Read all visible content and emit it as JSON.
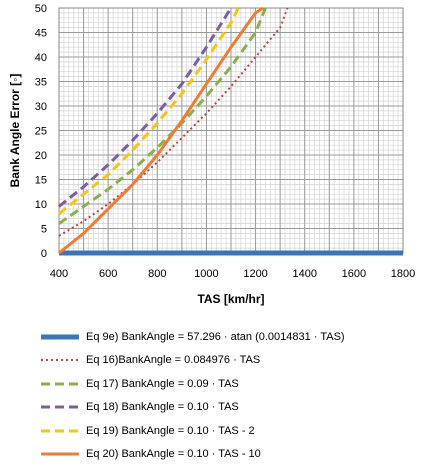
{
  "chart_data": {
    "type": "line",
    "title": "",
    "xlabel": "TAS [km/hr]",
    "ylabel": "Bank Angle Error [◦]",
    "xlim": [
      400,
      1800
    ],
    "ylim": [
      0,
      50
    ],
    "xticks": [
      400,
      600,
      800,
      1000,
      1200,
      1400,
      1600,
      1800
    ],
    "yticks": [
      0,
      5,
      10,
      15,
      20,
      25,
      30,
      35,
      40,
      45,
      50
    ],
    "grid": true,
    "legend_position": "bottom",
    "series": [
      {
        "name": "Eq 9e) BankAngle = 57.296 · atan (0.0014831 · TAS)",
        "color": "#3a75b8",
        "dash": "solid",
        "width": 5,
        "x": [
          400,
          1800
        ],
        "y": [
          0,
          0
        ]
      },
      {
        "name": "Eq 16)BankAngle = 0.084976 · TAS",
        "color": "#b24a45",
        "dash": "dot",
        "width": 2,
        "x": [
          400,
          500,
          600,
          700,
          800,
          900,
          1000,
          1100,
          1200,
          1300,
          1330
        ],
        "y": [
          3.5,
          6.5,
          10,
          14,
          18.5,
          23.5,
          28.5,
          34,
          40,
          46,
          50
        ]
      },
      {
        "name": "Eq 17) BankAngle = 0.09 · TAS",
        "color": "#8ab04a",
        "dash": "dash",
        "width": 3,
        "x": [
          400,
          500,
          600,
          700,
          800,
          900,
          1000,
          1100,
          1200,
          1240
        ],
        "y": [
          6,
          9.5,
          13,
          17,
          21.5,
          26.5,
          32,
          38,
          45,
          50
        ]
      },
      {
        "name": "Eq 18) BankAngle = 0.10 · TAS",
        "color": "#7b5ea8",
        "dash": "dash",
        "width": 3,
        "x": [
          400,
          500,
          600,
          700,
          800,
          900,
          1000,
          1100
        ],
        "y": [
          9.5,
          13.5,
          18,
          23,
          28.5,
          34.5,
          42,
          50
        ]
      },
      {
        "name": "Eq 19) BankAngle = 0.10 · TAS - 2",
        "color": "#f5c518",
        "dash": "dash",
        "width": 3,
        "x": [
          400,
          500,
          600,
          700,
          800,
          900,
          1000,
          1100,
          1130
        ],
        "y": [
          8,
          12,
          16,
          21,
          26.5,
          32.5,
          39.5,
          47,
          50
        ]
      },
      {
        "name": "Eq 20) BankAngle = 0.10 · TAS - 10",
        "color": "#ee7d33",
        "dash": "solid",
        "width": 3,
        "x": [
          400,
          500,
          600,
          700,
          800,
          900,
          1000,
          1100,
          1200,
          1230
        ],
        "y": [
          0,
          4,
          9,
          14,
          20,
          27,
          34.5,
          42,
          49,
          50
        ]
      }
    ]
  }
}
